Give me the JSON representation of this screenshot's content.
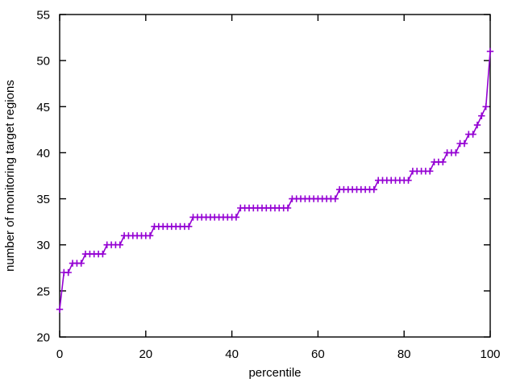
{
  "chart_data": {
    "type": "line",
    "title": "",
    "xlabel": "percentile",
    "ylabel": "number of monitoring target regions",
    "xlim": [
      0,
      100
    ],
    "ylim": [
      20,
      55
    ],
    "xticks": [
      0,
      20,
      40,
      60,
      80,
      100
    ],
    "yticks": [
      20,
      25,
      30,
      35,
      40,
      45,
      50,
      55
    ],
    "grid": false,
    "legend_position": "none",
    "line_color": "#9400d3",
    "marker": "plus",
    "marker_color": "#9400d3",
    "frame_color": "#000000",
    "series": [
      {
        "name": "number of monitoring target regions by percentile",
        "x_start": 0,
        "x_step": 1,
        "values": [
          23,
          27,
          27,
          28,
          28,
          28,
          29,
          29,
          29,
          29,
          29,
          30,
          30,
          30,
          30,
          31,
          31,
          31,
          31,
          31,
          31,
          31,
          32,
          32,
          32,
          32,
          32,
          32,
          32,
          32,
          32,
          33,
          33,
          33,
          33,
          33,
          33,
          33,
          33,
          33,
          33,
          33,
          34,
          34,
          34,
          34,
          34,
          34,
          34,
          34,
          34,
          34,
          34,
          34,
          35,
          35,
          35,
          35,
          35,
          35,
          35,
          35,
          35,
          35,
          35,
          36,
          36,
          36,
          36,
          36,
          36,
          36,
          36,
          36,
          37,
          37,
          37,
          37,
          37,
          37,
          37,
          37,
          38,
          38,
          38,
          38,
          38,
          39,
          39,
          39,
          40,
          40,
          40,
          41,
          41,
          42,
          42,
          43,
          44,
          45,
          51
        ]
      }
    ]
  }
}
